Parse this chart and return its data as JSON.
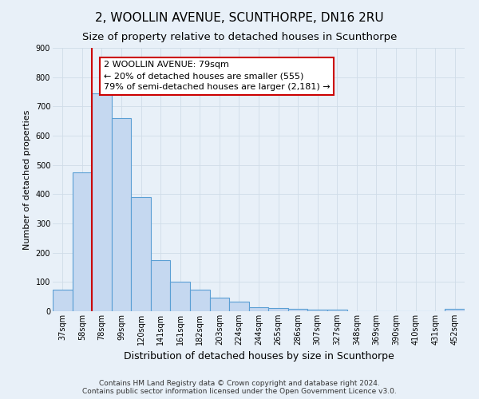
{
  "title": "2, WOOLLIN AVENUE, SCUNTHORPE, DN16 2RU",
  "subtitle": "Size of property relative to detached houses in Scunthorpe",
  "xlabel": "Distribution of detached houses by size in Scunthorpe",
  "ylabel": "Number of detached properties",
  "bar_labels": [
    "37sqm",
    "58sqm",
    "78sqm",
    "99sqm",
    "120sqm",
    "141sqm",
    "161sqm",
    "182sqm",
    "203sqm",
    "224sqm",
    "244sqm",
    "265sqm",
    "286sqm",
    "307sqm",
    "327sqm",
    "348sqm",
    "369sqm",
    "390sqm",
    "410sqm",
    "431sqm",
    "452sqm"
  ],
  "bar_values": [
    75,
    475,
    745,
    660,
    390,
    175,
    100,
    75,
    47,
    33,
    15,
    10,
    8,
    5,
    5,
    0,
    0,
    0,
    0,
    0,
    8
  ],
  "bar_color": "#c5d8f0",
  "bar_edge_color": "#5a9fd4",
  "vline_color": "#cc0000",
  "annotation_text": "2 WOOLLIN AVENUE: 79sqm\n← 20% of detached houses are smaller (555)\n79% of semi-detached houses are larger (2,181) →",
  "annotation_box_color": "#ffffff",
  "annotation_box_edge": "#cc0000",
  "ylim": [
    0,
    900
  ],
  "yticks": [
    0,
    100,
    200,
    300,
    400,
    500,
    600,
    700,
    800,
    900
  ],
  "grid_color": "#d0dce8",
  "background_color": "#e8f0f8",
  "footer": "Contains HM Land Registry data © Crown copyright and database right 2024.\nContains public sector information licensed under the Open Government Licence v3.0.",
  "title_fontsize": 11,
  "subtitle_fontsize": 9.5,
  "xlabel_fontsize": 9,
  "ylabel_fontsize": 8,
  "tick_fontsize": 7,
  "annotation_fontsize": 8,
  "footer_fontsize": 6.5
}
